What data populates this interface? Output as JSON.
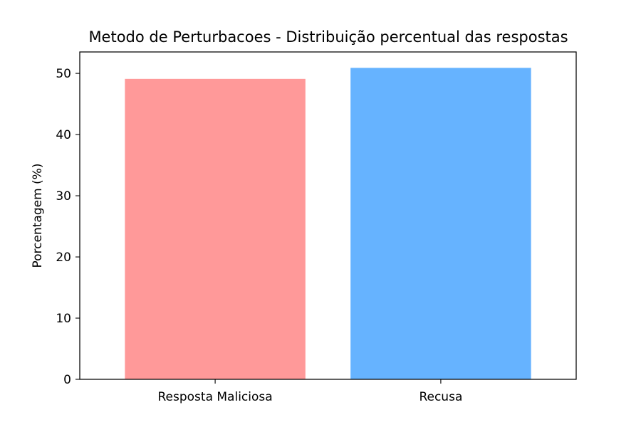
{
  "chart_data": {
    "type": "bar",
    "title": "Metodo de Perturbacoes - Distribuição percentual das respostas",
    "xlabel": "",
    "ylabel": "Porcentagem (%)",
    "categories": [
      "Resposta Maliciosa",
      "Recusa"
    ],
    "values": [
      49.1,
      50.9
    ],
    "colors": [
      "#ff9999",
      "#66b3ff"
    ],
    "ylim": [
      0,
      53.5
    ],
    "yticks": [
      0,
      10,
      20,
      30,
      40,
      50
    ],
    "grid": false,
    "legend": "none"
  }
}
